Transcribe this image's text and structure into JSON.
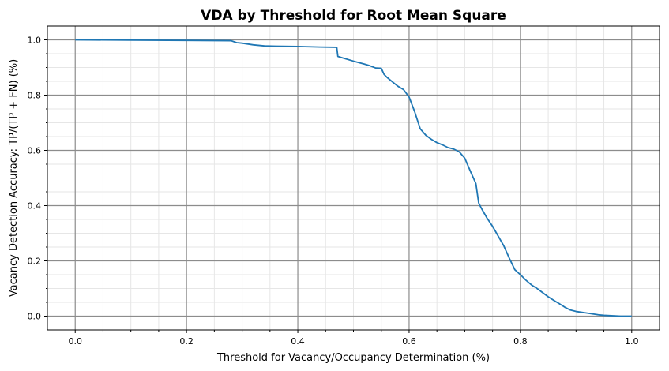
{
  "chart_data": {
    "type": "line",
    "title": "VDA by Threshold  for Root Mean Square",
    "xlabel": "Threshold for Vacancy/Occupancy Determination (%)",
    "ylabel": "Vacancy Detection Accuracy: TP/(TP + FN) (%)",
    "xlim": [
      -0.05,
      1.05
    ],
    "ylim": [
      -0.05,
      1.05
    ],
    "x_ticks": [
      "0.0",
      "0.2",
      "0.4",
      "0.6",
      "0.8",
      "1.0"
    ],
    "y_ticks": [
      "0.0",
      "0.2",
      "0.4",
      "0.6",
      "0.8",
      "1.0"
    ],
    "grid": true,
    "minor_grid": true,
    "line_color": "#1f77b4",
    "series": [
      {
        "x": [
          0.0,
          0.1,
          0.2,
          0.28,
          0.29,
          0.3,
          0.32,
          0.34,
          0.36,
          0.4,
          0.42,
          0.44,
          0.47,
          0.472,
          0.48,
          0.5,
          0.52,
          0.53,
          0.54,
          0.55,
          0.555,
          0.56,
          0.57,
          0.58,
          0.59,
          0.6,
          0.61,
          0.62,
          0.63,
          0.64,
          0.65,
          0.66,
          0.67,
          0.68,
          0.69,
          0.7,
          0.71,
          0.72,
          0.725,
          0.73,
          0.74,
          0.75,
          0.76,
          0.77,
          0.78,
          0.79,
          0.8,
          0.81,
          0.82,
          0.83,
          0.84,
          0.85,
          0.86,
          0.87,
          0.88,
          0.89,
          0.9,
          0.92,
          0.94,
          0.95,
          0.96,
          0.97,
          0.98,
          1.0
        ],
        "y": [
          1.0,
          0.999,
          0.998,
          0.997,
          0.99,
          0.988,
          0.982,
          0.978,
          0.977,
          0.976,
          0.975,
          0.974,
          0.973,
          0.94,
          0.935,
          0.923,
          0.912,
          0.906,
          0.898,
          0.897,
          0.875,
          0.865,
          0.848,
          0.832,
          0.82,
          0.793,
          0.74,
          0.678,
          0.655,
          0.64,
          0.628,
          0.62,
          0.61,
          0.605,
          0.595,
          0.572,
          0.525,
          0.48,
          0.41,
          0.39,
          0.355,
          0.325,
          0.29,
          0.255,
          0.21,
          0.168,
          0.15,
          0.13,
          0.113,
          0.1,
          0.085,
          0.07,
          0.057,
          0.045,
          0.032,
          0.022,
          0.017,
          0.011,
          0.005,
          0.003,
          0.002,
          0.001,
          0.0,
          0.0
        ]
      }
    ]
  }
}
